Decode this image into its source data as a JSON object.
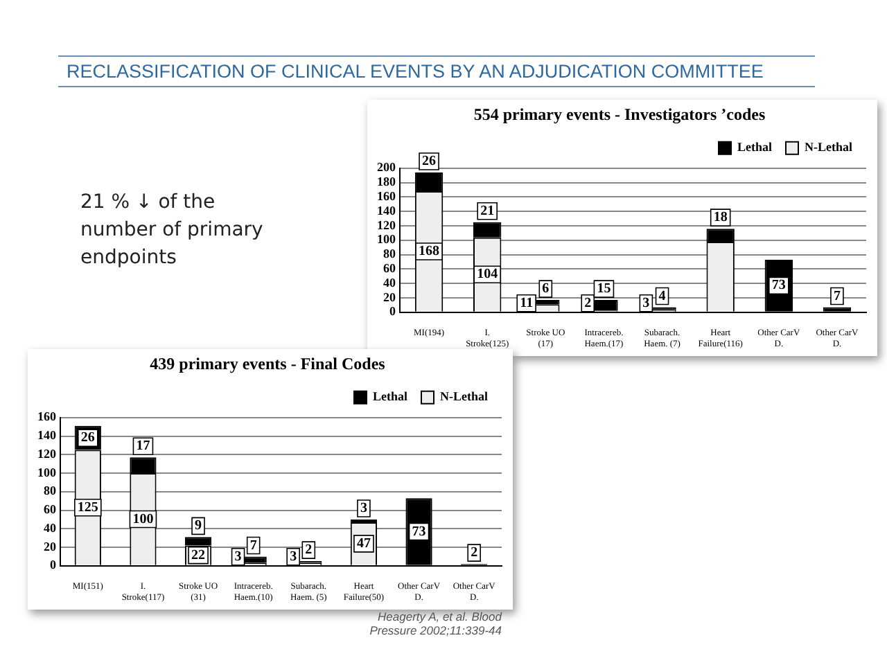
{
  "chart_data": [
    {
      "type": "other",
      "title": "RECLASSIFICATION OF CLINICAL EVENTS BY AN ADJUDICATION COMMITTEE",
      "annotations": [
        "21 % ↓ of the number of primary endpoints"
      ]
    },
    {
      "type": "bar",
      "title": "554 primary events - Investigators ’codes",
      "categories": [
        "MI(194)",
        "I. Stroke(125)",
        "Stroke UO (17)",
        "Intracereb. Haem.(17)",
        "Subarach. Haem. (7)",
        "Heart Failure(116)",
        "Other CarV D.",
        "Other CarV D."
      ],
      "stacked": true,
      "series": [
        {
          "name": "N-Lethal",
          "color": "#eeeeee",
          "values": [
            168,
            104,
            11,
            2,
            3,
            98,
            0,
            0
          ],
          "value_labels": [
            "168",
            "104",
            "11",
            "2",
            "3",
            null,
            null,
            null
          ]
        },
        {
          "name": "Lethal",
          "color": "#000000",
          "values": [
            26,
            21,
            6,
            15,
            4,
            18,
            73,
            7
          ],
          "value_labels": [
            "26",
            "21",
            "6",
            "15",
            "4",
            "18",
            "73",
            "7"
          ]
        }
      ],
      "ylim": [
        0,
        200
      ],
      "yticks": [
        0,
        20,
        40,
        60,
        80,
        100,
        120,
        140,
        160,
        180,
        200
      ],
      "grid": "y",
      "legend": "top right"
    },
    {
      "type": "bar",
      "title": "439 primary events - Final Codes",
      "categories": [
        "MI(151)",
        "I. Stroke(117)",
        "Stroke UO (31)",
        "Intracereb. Haem.(10)",
        "Subarach. Haem. (5)",
        "Heart Failure(50)",
        "Other CarV D.",
        "Other CarV D."
      ],
      "stacked": true,
      "series": [
        {
          "name": "N-Lethal",
          "color": "#eeeeee",
          "values": [
            125,
            100,
            22,
            3,
            3,
            47,
            0,
            0
          ],
          "value_labels": [
            "125",
            "100",
            "22",
            "3",
            "3",
            "47",
            null,
            null
          ]
        },
        {
          "name": "Lethal",
          "color": "#000000",
          "values": [
            26,
            17,
            9,
            7,
            2,
            3,
            73,
            2
          ],
          "value_labels": [
            "26",
            "17",
            "9",
            "7",
            "2",
            "3",
            "73",
            "2"
          ]
        }
      ],
      "ylim": [
        0,
        160
      ],
      "yticks": [
        0,
        20,
        40,
        60,
        80,
        100,
        120,
        140,
        160
      ],
      "grid": "y",
      "legend": "top right",
      "annotations": [
        "Heagerty A, et al. Blood Pressure 2002;11:339-44"
      ]
    }
  ]
}
